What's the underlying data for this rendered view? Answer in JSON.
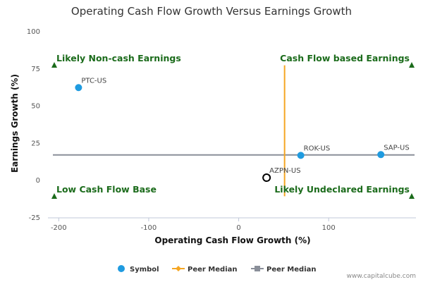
{
  "chart_data": {
    "type": "scatter",
    "title": "Operating Cash Flow Growth Versus Earnings Growth",
    "xlabel": "Operating Cash Flow Growth (%)",
    "ylabel": "Earnings Growth (%)",
    "xlim": [
      -212,
      197
    ],
    "ylim": [
      -25,
      100
    ],
    "xticks": [
      -200,
      -100,
      0,
      100
    ],
    "yticks": [
      -25,
      0,
      25,
      50,
      75,
      100
    ],
    "grid": false,
    "legend_position": "bottom",
    "points": [
      {
        "label": "PTC-US",
        "x": -178,
        "y": 62,
        "style": "filled",
        "color": "#1f9be0"
      },
      {
        "label": "ROK-US",
        "x": 69,
        "y": 16.5,
        "style": "filled",
        "color": "#1f9be0"
      },
      {
        "label": "SAP-US",
        "x": 158,
        "y": 17,
        "style": "filled",
        "color": "#1f9be0"
      },
      {
        "label": "AZPN-US",
        "x": 31,
        "y": 1.5,
        "style": "open",
        "color": "#000000"
      }
    ],
    "peer_median_x": 51,
    "peer_median_y": 16.8,
    "peer_median_x_range": [
      -11,
      77
    ],
    "quadrant_labels": {
      "top_left": "Likely Non-cash Earnings",
      "top_right": "Cash Flow based Earnings",
      "bottom_left": "Low Cash Flow Base",
      "bottom_right": "Likely Undeclared Earnings"
    },
    "legend": [
      {
        "name": "Symbol",
        "color": "#1f9be0",
        "marker": "circle"
      },
      {
        "name": "Peer Median",
        "color": "#f5a623",
        "marker": "diamond"
      },
      {
        "name": "Peer Median",
        "color": "#8a8f99",
        "marker": "square"
      }
    ],
    "colors": {
      "vertical_median": "#f5a623",
      "horizontal_median": "#8a8f99",
      "quadrant_text": "#1b6b1b",
      "axis": "#c0c8d8"
    },
    "credit": "www.capitalcube.com"
  }
}
